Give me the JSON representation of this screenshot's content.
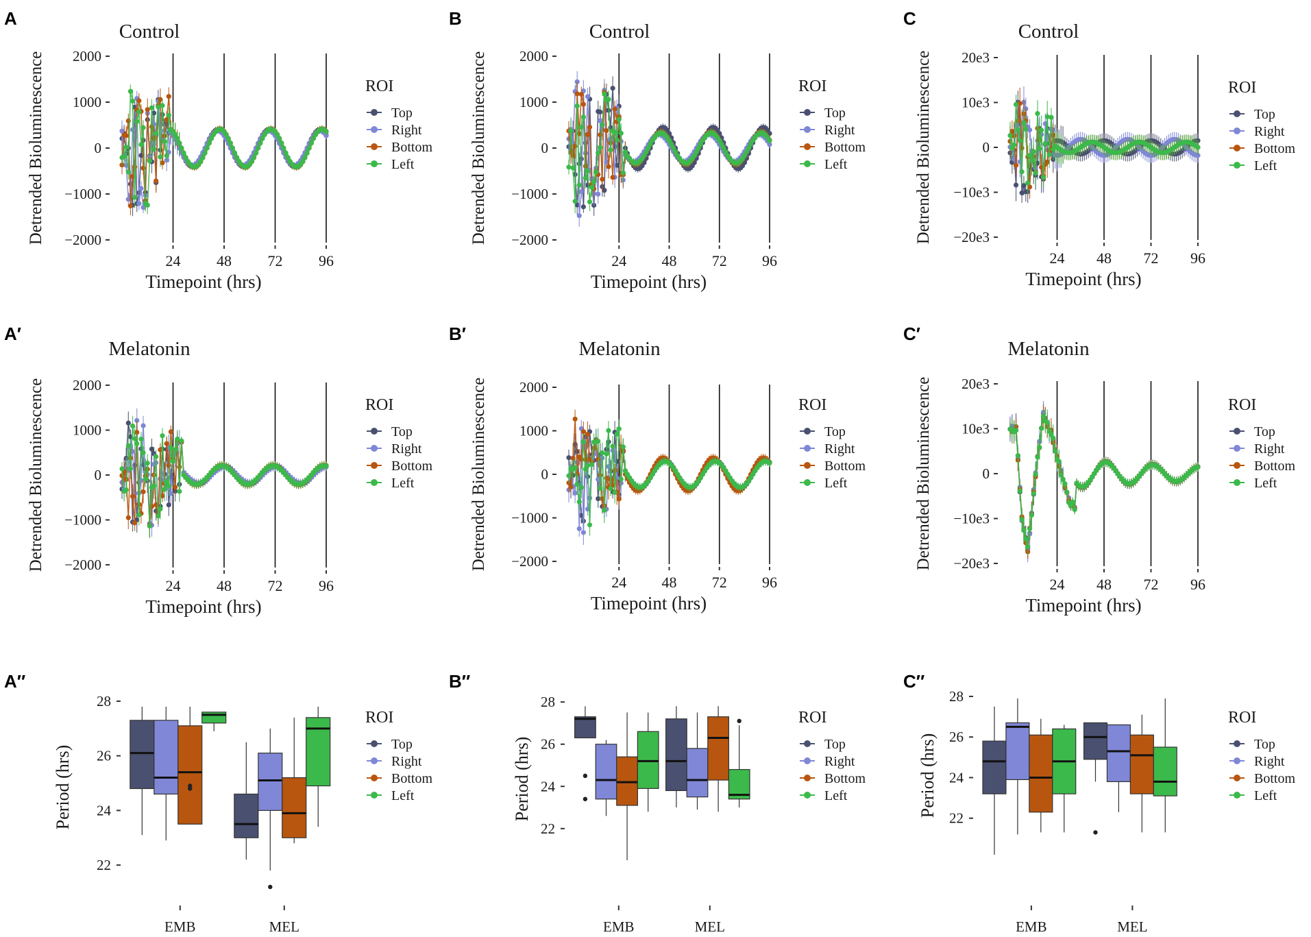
{
  "figure": {
    "panel_labels": [
      "A",
      "B",
      "C",
      "A′",
      "B′",
      "C′",
      "A′′",
      "B′′",
      "C′′"
    ]
  },
  "colors": {
    "Top": "#4a5070",
    "Right": "#7f87d6",
    "Bottom": "#b8560f",
    "Left": "#3cb94b"
  },
  "chart_data": [
    {
      "panel": "A",
      "type": "line",
      "title": "Control",
      "xlabel": "Timepoint (hrs)",
      "ylabel": "Detrended Bioluminescence",
      "xlim": [
        0,
        96
      ],
      "ylim": [
        -2000,
        2000
      ],
      "xticks": [
        24,
        48,
        72,
        96
      ],
      "xtick_labels": [
        "24",
        "48",
        "72",
        "96"
      ],
      "yticks": [
        -2000,
        -1000,
        0,
        1000,
        2000
      ],
      "ytick_labels": [
        "−2000",
        "−1000",
        "0",
        "1000",
        "2000"
      ],
      "vlines": [
        24,
        48,
        72,
        96
      ],
      "legend_title": "ROI",
      "series": [
        {
          "name": "Top",
          "amplitude": 400,
          "phase_peak_hours": 69,
          "noise_amplitude": 1500,
          "settle_hours": 20,
          "error": 60
        },
        {
          "name": "Right",
          "amplitude": 380,
          "phase_peak_hours": 69,
          "noise_amplitude": 1500,
          "settle_hours": 20,
          "error": 60
        },
        {
          "name": "Bottom",
          "amplitude": 420,
          "phase_peak_hours": 70,
          "noise_amplitude": 1500,
          "settle_hours": 20,
          "error": 60
        },
        {
          "name": "Left",
          "amplitude": 410,
          "phase_peak_hours": 70,
          "noise_amplitude": 1500,
          "settle_hours": 20,
          "error": 60
        }
      ]
    },
    {
      "panel": "B",
      "type": "line",
      "title": "Control",
      "xlabel": "Timepoint (hrs)",
      "ylabel": "Detrended Bioluminescence",
      "xlim": [
        0,
        96
      ],
      "ylim": [
        -2000,
        2000
      ],
      "xticks": [
        24,
        48,
        72,
        96
      ],
      "xtick_labels": [
        "24",
        "48",
        "72",
        "96"
      ],
      "yticks": [
        -2000,
        -1000,
        0,
        1000,
        2000
      ],
      "ytick_labels": [
        "−2000",
        "−1000",
        "0",
        "1000",
        "2000"
      ],
      "vlines": [
        24,
        48,
        72,
        96
      ],
      "legend_title": "ROI",
      "series": [
        {
          "name": "Top",
          "amplitude": 450,
          "phase_peak_hours": 69,
          "noise_amplitude": 1600,
          "settle_hours": 24,
          "error": 70
        },
        {
          "name": "Right",
          "amplitude": 300,
          "phase_peak_hours": 67,
          "noise_amplitude": 1600,
          "settle_hours": 24,
          "error": 70
        },
        {
          "name": "Bottom",
          "amplitude": 350,
          "phase_peak_hours": 68,
          "noise_amplitude": 1600,
          "settle_hours": 24,
          "error": 70
        },
        {
          "name": "Left",
          "amplitude": 330,
          "phase_peak_hours": 68,
          "noise_amplitude": 1600,
          "settle_hours": 24,
          "error": 70
        }
      ]
    },
    {
      "panel": "C",
      "type": "line",
      "title": "Control",
      "xlabel": "Timepoint (hrs)",
      "ylabel": "Detrended Bioluminescence",
      "xlim": [
        0,
        96
      ],
      "ylim": [
        -20000,
        20000
      ],
      "xticks": [
        24,
        48,
        72,
        96
      ],
      "xtick_labels": [
        "24",
        "48",
        "72",
        "96"
      ],
      "yticks": [
        -20000,
        -10000,
        0,
        10000,
        20000
      ],
      "ytick_labels": [
        "−20e3",
        "−10e3",
        "0",
        "10e3",
        "20e3"
      ],
      "vlines": [
        24,
        48,
        72,
        96
      ],
      "legend_title": "ROI",
      "series": [
        {
          "name": "Top",
          "amplitude": 1500,
          "phase_peak_hours": 72,
          "noise_amplitude": 12000,
          "settle_hours": 20,
          "error": 1500
        },
        {
          "name": "Right",
          "amplitude": 1800,
          "phase_peak_hours": 60,
          "noise_amplitude": 12000,
          "settle_hours": 20,
          "error": 1500
        },
        {
          "name": "Bottom",
          "amplitude": 1200,
          "phase_peak_hours": 66,
          "noise_amplitude": 12000,
          "settle_hours": 20,
          "error": 1500
        },
        {
          "name": "Left",
          "amplitude": 1200,
          "phase_peak_hours": 66,
          "noise_amplitude": 12000,
          "settle_hours": 20,
          "error": 1500
        }
      ]
    },
    {
      "panel": "A′",
      "type": "line",
      "title": "Melatonin",
      "xlabel": "Timepoint (hrs)",
      "ylabel": "Detrended Bioluminescence",
      "xlim": [
        0,
        96
      ],
      "ylim": [
        -2000,
        2000
      ],
      "xticks": [
        24,
        48,
        72,
        96
      ],
      "xtick_labels": [
        "24",
        "48",
        "72",
        "96"
      ],
      "yticks": [
        -2000,
        -1000,
        0,
        1000,
        2000
      ],
      "ytick_labels": [
        "−2000",
        "−1000",
        "0",
        "1000",
        "2000"
      ],
      "vlines": [
        24,
        48,
        72,
        96
      ],
      "legend_title": "ROI",
      "series": [
        {
          "name": "Top",
          "amplitude": 200,
          "phase_peak_hours": 72,
          "noise_amplitude": 1400,
          "settle_hours": 26,
          "error": 80
        },
        {
          "name": "Right",
          "amplitude": 180,
          "phase_peak_hours": 72,
          "noise_amplitude": 1400,
          "settle_hours": 26,
          "error": 80
        },
        {
          "name": "Bottom",
          "amplitude": 220,
          "phase_peak_hours": 71,
          "noise_amplitude": 1400,
          "settle_hours": 26,
          "error": 80
        },
        {
          "name": "Left",
          "amplitude": 210,
          "phase_peak_hours": 71,
          "noise_amplitude": 1400,
          "settle_hours": 26,
          "error": 80
        }
      ]
    },
    {
      "panel": "B′",
      "type": "line",
      "title": "Melatonin",
      "xlabel": "Timepoint (hrs)",
      "ylabel": "Detrended Bioluminescence",
      "xlim": [
        0,
        96
      ],
      "ylim": [
        -2000,
        2000
      ],
      "xticks": [
        24,
        48,
        72,
        96
      ],
      "xtick_labels": [
        "24",
        "48",
        "72",
        "96"
      ],
      "yticks": [
        -2000,
        -1000,
        0,
        1000,
        2000
      ],
      "ytick_labels": [
        "−2000",
        "−1000",
        "0",
        "1000",
        "2000"
      ],
      "vlines": [
        24,
        48,
        72,
        96
      ],
      "legend_title": "ROI",
      "series": [
        {
          "name": "Top",
          "amplitude": 320,
          "phase_peak_hours": 70,
          "noise_amplitude": 1500,
          "settle_hours": 24,
          "error": 80
        },
        {
          "name": "Right",
          "amplitude": 300,
          "phase_peak_hours": 70,
          "noise_amplitude": 1500,
          "settle_hours": 24,
          "error": 80
        },
        {
          "name": "Bottom",
          "amplitude": 380,
          "phase_peak_hours": 69,
          "noise_amplitude": 1500,
          "settle_hours": 24,
          "error": 80
        },
        {
          "name": "Left",
          "amplitude": 300,
          "phase_peak_hours": 70,
          "noise_amplitude": 1500,
          "settle_hours": 24,
          "error": 80
        }
      ]
    },
    {
      "panel": "C′",
      "type": "line",
      "title": "Melatonin",
      "xlabel": "Timepoint (hrs)",
      "ylabel": "Detrended Bioluminescence",
      "xlim": [
        0,
        96
      ],
      "ylim": [
        -20000,
        20000
      ],
      "xticks": [
        24,
        48,
        72,
        96
      ],
      "xtick_labels": [
        "24",
        "48",
        "72",
        "96"
      ],
      "yticks": [
        -20000,
        -10000,
        0,
        10000,
        20000
      ],
      "ytick_labels": [
        "−20e3",
        "−10e3",
        "0",
        "10e3",
        "20e3"
      ],
      "vlines": [
        24,
        48,
        72,
        96
      ],
      "legend_title": "ROI",
      "series": [
        {
          "name": "Top",
          "amplitude": 3200,
          "phase_peak_hours": 49,
          "noise_amplitude": 0,
          "settle_hours": 0,
          "error": 900
        },
        {
          "name": "Right",
          "amplitude": 3000,
          "phase_peak_hours": 49,
          "noise_amplitude": 0,
          "settle_hours": 0,
          "error": 900
        },
        {
          "name": "Bottom",
          "amplitude": 3100,
          "phase_peak_hours": 49,
          "noise_amplitude": 0,
          "settle_hours": 0,
          "error": 900
        },
        {
          "name": "Left",
          "amplitude": 3000,
          "phase_peak_hours": 49,
          "noise_amplitude": 0,
          "settle_hours": 0,
          "error": 900
        }
      ],
      "early_transient": [
        {
          "t": 3,
          "v": 10000
        },
        {
          "t": 6,
          "v": -10000
        },
        {
          "t": 9,
          "v": -17000
        },
        {
          "t": 13,
          "v": 0
        },
        {
          "t": 17,
          "v": 13000
        },
        {
          "t": 21,
          "v": 9000
        },
        {
          "t": 25,
          "v": 2000
        },
        {
          "t": 30,
          "v": -6000
        },
        {
          "t": 34,
          "v": -8000
        }
      ]
    },
    {
      "panel": "A′′",
      "type": "box",
      "ylabel": "Period (hrs)",
      "ylim": [
        21.5,
        28.2
      ],
      "yticks": [
        22,
        24,
        26,
        28
      ],
      "ytick_labels": [
        "22",
        "24",
        "26",
        "28"
      ],
      "categories": [
        "EMB",
        "MEL"
      ],
      "legend_title": "ROI",
      "boxes": [
        {
          "group": "EMB",
          "roi": "Top",
          "min": 23.1,
          "q1": 24.8,
          "median": 26.1,
          "q3": 27.3,
          "max": 27.8,
          "outliers": []
        },
        {
          "group": "EMB",
          "roi": "Right",
          "min": 22.9,
          "q1": 24.6,
          "median": 25.2,
          "q3": 27.3,
          "max": 27.8,
          "outliers": []
        },
        {
          "group": "EMB",
          "roi": "Bottom",
          "min": 23.5,
          "q1": 23.5,
          "median": 25.4,
          "q3": 27.1,
          "max": 27.8,
          "outliers": [
            24.9,
            24.8
          ]
        },
        {
          "group": "EMB",
          "roi": "Left",
          "min": 26.9,
          "q1": 27.2,
          "median": 27.5,
          "q3": 27.6,
          "max": 27.6,
          "outliers": []
        },
        {
          "group": "MEL",
          "roi": "Top",
          "min": 22.2,
          "q1": 23.0,
          "median": 23.5,
          "q3": 24.6,
          "max": 26.5,
          "outliers": []
        },
        {
          "group": "MEL",
          "roi": "Right",
          "min": 21.8,
          "q1": 24.0,
          "median": 25.1,
          "q3": 26.1,
          "max": 27.0,
          "outliers": [
            21.2
          ]
        },
        {
          "group": "MEL",
          "roi": "Bottom",
          "min": 22.8,
          "q1": 23.0,
          "median": 23.9,
          "q3": 25.2,
          "max": 27.4,
          "outliers": []
        },
        {
          "group": "MEL",
          "roi": "Left",
          "min": 23.4,
          "q1": 24.9,
          "median": 27.0,
          "q3": 27.4,
          "max": 27.8,
          "outliers": []
        }
      ]
    },
    {
      "panel": "B′′",
      "type": "box",
      "ylabel": "Period (hrs)",
      "ylim": [
        20.5,
        28.2
      ],
      "yticks": [
        22,
        24,
        26,
        28
      ],
      "ytick_labels": [
        "22",
        "24",
        "26",
        "28"
      ],
      "categories": [
        "EMB",
        "MEL"
      ],
      "legend_title": "ROI",
      "boxes": [
        {
          "group": "EMB",
          "roi": "Top",
          "min": 26.3,
          "q1": 26.3,
          "median": 27.2,
          "q3": 27.3,
          "max": 27.8,
          "outliers": [
            24.5,
            23.4
          ]
        },
        {
          "group": "EMB",
          "roi": "Right",
          "min": 22.6,
          "q1": 23.4,
          "median": 24.3,
          "q3": 26.0,
          "max": 26.2,
          "outliers": []
        },
        {
          "group": "EMB",
          "roi": "Bottom",
          "min": 20.5,
          "q1": 23.1,
          "median": 24.2,
          "q3": 25.4,
          "max": 27.5,
          "outliers": []
        },
        {
          "group": "EMB",
          "roi": "Left",
          "min": 22.8,
          "q1": 23.9,
          "median": 25.2,
          "q3": 26.6,
          "max": 27.5,
          "outliers": []
        },
        {
          "group": "MEL",
          "roi": "Top",
          "min": 23.0,
          "q1": 23.8,
          "median": 25.2,
          "q3": 27.2,
          "max": 27.8,
          "outliers": []
        },
        {
          "group": "MEL",
          "roi": "Right",
          "min": 22.9,
          "q1": 23.5,
          "median": 24.3,
          "q3": 25.8,
          "max": 27.5,
          "outliers": []
        },
        {
          "group": "MEL",
          "roi": "Bottom",
          "min": 22.8,
          "q1": 24.3,
          "median": 26.3,
          "q3": 27.3,
          "max": 27.8,
          "outliers": []
        },
        {
          "group": "MEL",
          "roi": "Left",
          "min": 23.0,
          "q1": 23.4,
          "median": 23.6,
          "q3": 24.8,
          "max": 26.9,
          "outliers": [
            27.1
          ]
        }
      ]
    },
    {
      "panel": "C′′",
      "type": "box",
      "ylabel": "Period (hrs)",
      "ylim": [
        20.2,
        28.0
      ],
      "yticks": [
        22,
        24,
        26,
        28
      ],
      "ytick_labels": [
        "22",
        "24",
        "26",
        "28"
      ],
      "categories": [
        "EMB",
        "MEL"
      ],
      "legend_title": "ROI",
      "boxes": [
        {
          "group": "EMB",
          "roi": "Top",
          "min": 20.2,
          "q1": 23.2,
          "median": 24.8,
          "q3": 25.8,
          "max": 27.5,
          "outliers": []
        },
        {
          "group": "EMB",
          "roi": "Right",
          "min": 21.2,
          "q1": 23.9,
          "median": 26.5,
          "q3": 26.7,
          "max": 27.9,
          "outliers": []
        },
        {
          "group": "EMB",
          "roi": "Bottom",
          "min": 21.3,
          "q1": 22.3,
          "median": 24.0,
          "q3": 26.1,
          "max": 26.9,
          "outliers": []
        },
        {
          "group": "EMB",
          "roi": "Left",
          "min": 21.3,
          "q1": 23.2,
          "median": 24.8,
          "q3": 26.4,
          "max": 26.6,
          "outliers": []
        },
        {
          "group": "MEL",
          "roi": "Top",
          "min": 23.8,
          "q1": 24.9,
          "median": 26.0,
          "q3": 26.7,
          "max": 26.7,
          "outliers": [
            21.3
          ]
        },
        {
          "group": "MEL",
          "roi": "Right",
          "min": 22.3,
          "q1": 23.8,
          "median": 25.3,
          "q3": 26.6,
          "max": 26.6,
          "outliers": []
        },
        {
          "group": "MEL",
          "roi": "Bottom",
          "min": 21.3,
          "q1": 23.2,
          "median": 25.1,
          "q3": 26.1,
          "max": 27.1,
          "outliers": []
        },
        {
          "group": "MEL",
          "roi": "Left",
          "min": 21.3,
          "q1": 23.1,
          "median": 23.8,
          "q3": 25.5,
          "max": 27.9,
          "outliers": []
        }
      ]
    }
  ]
}
